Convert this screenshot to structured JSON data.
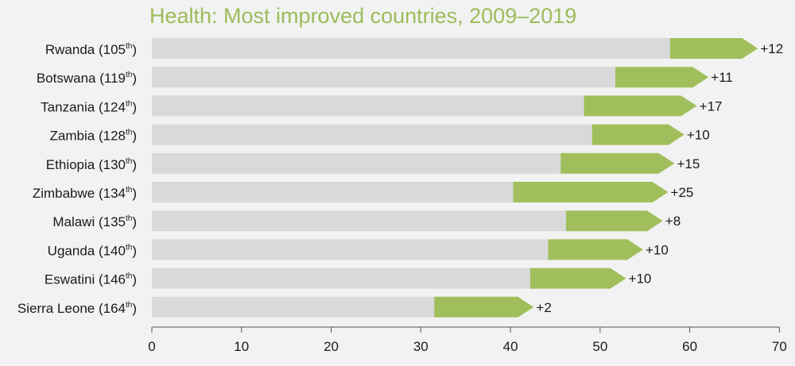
{
  "chart_data": {
    "type": "bar",
    "subtype": "stacked-horizontal-change",
    "title": "Health: Most improved countries, 2009–2019",
    "xlabel": "",
    "ylabel": "",
    "xlim": [
      0,
      70
    ],
    "xticks": [
      0,
      10,
      20,
      30,
      40,
      50,
      60,
      70
    ],
    "grid": false,
    "categories": [
      {
        "name": "Rwanda",
        "rank": "105",
        "rank_suffix": "th"
      },
      {
        "name": "Botswana",
        "rank": "119",
        "rank_suffix": "th"
      },
      {
        "name": "Tanzania",
        "rank": "124",
        "rank_suffix": "th"
      },
      {
        "name": "Zambia",
        "rank": "128",
        "rank_suffix": "th"
      },
      {
        "name": "Ethiopia",
        "rank": "130",
        "rank_suffix": "th"
      },
      {
        "name": "Zimbabwe",
        "rank": "134",
        "rank_suffix": "th"
      },
      {
        "name": "Malawi",
        "rank": "135",
        "rank_suffix": "th"
      },
      {
        "name": "Uganda",
        "rank": "140",
        "rank_suffix": "th"
      },
      {
        "name": "Eswatini",
        "rank": "146",
        "rank_suffix": "th"
      },
      {
        "name": "Sierra Leone",
        "rank": "164",
        "rank_suffix": "th"
      }
    ],
    "series": [
      {
        "values": [
          57.8,
          51.7,
          48.2,
          49.1,
          45.6,
          40.3,
          46.2,
          44.2,
          42.2,
          31.5
        ],
        "color": "#d9d9d9"
      },
      {
        "values": [
          67.6,
          62.1,
          60.8,
          59.4,
          58.3,
          57.6,
          57.0,
          54.8,
          52.9,
          42.6
        ],
        "color": "#a0bf5c"
      }
    ],
    "change_labels": [
      "+12",
      "+11",
      "+17",
      "+10",
      "+15",
      "+25",
      "+8",
      "+10",
      "+10",
      "+2"
    ]
  }
}
